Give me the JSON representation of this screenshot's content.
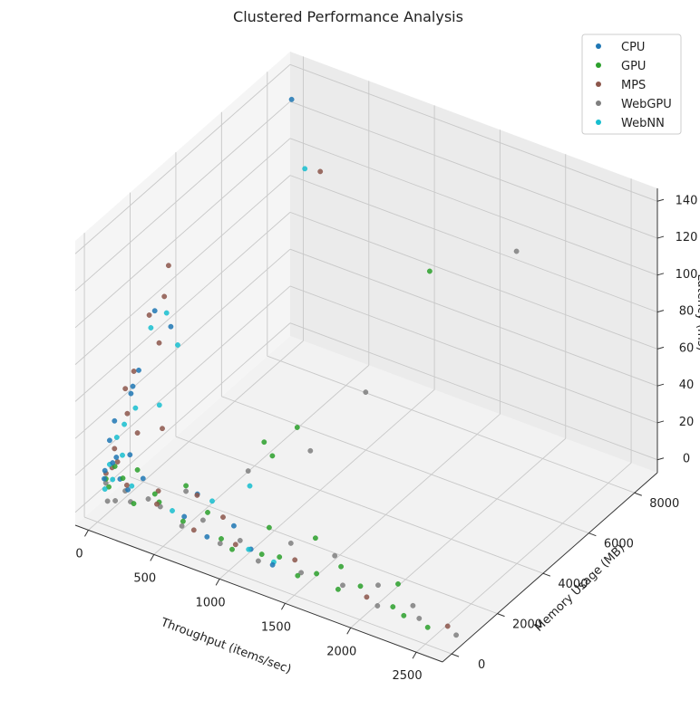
{
  "chart_data": {
    "type": "scatter",
    "projection": "3d",
    "title": "Clustered Performance Analysis",
    "xlabel": "Throughput (items/sec)",
    "ylabel": "Memory Usage (MB)",
    "zlabel": "Latency (ms)",
    "xlim": [
      -100,
      2700
    ],
    "ylim": [
      -400,
      9000
    ],
    "zlim": [
      -7,
      147
    ],
    "xticks": [
      0,
      500,
      1000,
      1500,
      2000,
      2500
    ],
    "yticks": [
      0,
      2000,
      4000,
      6000,
      8000
    ],
    "zticks": [
      0,
      20,
      40,
      60,
      80,
      100,
      120,
      140
    ],
    "grid": true,
    "legend_position": "top-right",
    "series": [
      {
        "name": "CPU",
        "color": "#1f77b4",
        "points": [
          [
            120,
            7800,
            140
          ],
          [
            350,
            1200,
            95
          ],
          [
            280,
            900,
            105
          ],
          [
            150,
            600,
            60
          ],
          [
            60,
            400,
            45
          ],
          [
            40,
            300,
            35
          ],
          [
            80,
            200,
            25
          ],
          [
            30,
            150,
            20
          ],
          [
            100,
            250,
            28
          ],
          [
            20,
            180,
            15
          ],
          [
            180,
            300,
            12
          ],
          [
            260,
            500,
            18
          ],
          [
            600,
            350,
            8
          ],
          [
            800,
            200,
            4
          ],
          [
            1100,
            400,
            3
          ],
          [
            1300,
            200,
            2
          ],
          [
            900,
            800,
            6
          ],
          [
            500,
            1500,
            5
          ],
          [
            60,
            1200,
            55
          ],
          [
            140,
            1000,
            68
          ],
          [
            50,
            700,
            10
          ],
          [
            90,
            900,
            22
          ]
        ]
      },
      {
        "name": "GPU",
        "color": "#2ca02c",
        "points": [
          [
            1400,
            6500,
            95
          ],
          [
            1000,
            3000,
            38
          ],
          [
            950,
            2200,
            30
          ],
          [
            800,
            2700,
            28
          ],
          [
            500,
            1000,
            15
          ],
          [
            350,
            500,
            12
          ],
          [
            600,
            300,
            6
          ],
          [
            1200,
            300,
            4
          ],
          [
            1600,
            400,
            3
          ],
          [
            1900,
            600,
            2
          ],
          [
            2200,
            300,
            2
          ],
          [
            2300,
            200,
            1
          ],
          [
            2500,
            100,
            1
          ],
          [
            1800,
            200,
            2
          ],
          [
            1500,
            150,
            2
          ],
          [
            1300,
            500,
            3
          ],
          [
            1700,
            900,
            4
          ],
          [
            700,
            800,
            8
          ],
          [
            400,
            400,
            10
          ],
          [
            150,
            250,
            18
          ],
          [
            80,
            300,
            22
          ],
          [
            30,
            200,
            15
          ],
          [
            60,
            150,
            12
          ],
          [
            200,
            600,
            20
          ],
          [
            1100,
            1200,
            6
          ],
          [
            1400,
            1500,
            5
          ],
          [
            2100,
            1100,
            3
          ],
          [
            250,
            150,
            8
          ],
          [
            900,
            250,
            5
          ],
          [
            1000,
            150,
            3
          ]
        ]
      },
      {
        "name": "MPS",
        "color": "#8c564b",
        "points": [
          [
            600,
            6300,
            130
          ],
          [
            280,
            1500,
            123
          ],
          [
            300,
            1200,
            110
          ],
          [
            220,
            1000,
            100
          ],
          [
            330,
            800,
            90
          ],
          [
            120,
            900,
            68
          ],
          [
            90,
            700,
            60
          ],
          [
            140,
            500,
            50
          ],
          [
            200,
            600,
            40
          ],
          [
            60,
            400,
            30
          ],
          [
            100,
            300,
            25
          ],
          [
            30,
            200,
            18
          ],
          [
            180,
            250,
            15
          ],
          [
            400,
            300,
            10
          ],
          [
            700,
            200,
            5
          ],
          [
            1000,
            300,
            4
          ],
          [
            1400,
            600,
            3
          ],
          [
            2000,
            300,
            2
          ],
          [
            2600,
            400,
            1
          ],
          [
            800,
            900,
            7
          ],
          [
            550,
            1200,
            9
          ],
          [
            350,
            650,
            12
          ],
          [
            50,
            350,
            20
          ],
          [
            250,
            1400,
            35
          ]
        ]
      },
      {
        "name": "WebGPU",
        "color": "#7f7f7f",
        "points": [
          [
            1800,
            8000,
            100
          ],
          [
            1400,
            3700,
            60
          ],
          [
            1100,
            3000,
            28
          ],
          [
            800,
            2000,
            20
          ],
          [
            500,
            1000,
            12
          ],
          [
            300,
            500,
            8
          ],
          [
            200,
            300,
            6
          ],
          [
            100,
            200,
            5
          ],
          [
            50,
            150,
            4
          ],
          [
            600,
            250,
            4
          ],
          [
            900,
            200,
            3
          ],
          [
            1200,
            150,
            2
          ],
          [
            1500,
            300,
            2
          ],
          [
            1800,
            400,
            2
          ],
          [
            2100,
            200,
            1
          ],
          [
            2400,
            300,
            1
          ],
          [
            2700,
            200,
            1
          ],
          [
            2000,
            800,
            3
          ],
          [
            1600,
            1200,
            4
          ],
          [
            1300,
            1000,
            5
          ],
          [
            700,
            600,
            6
          ],
          [
            400,
            450,
            7
          ],
          [
            150,
            350,
            10
          ],
          [
            20,
            250,
            12
          ],
          [
            2300,
            600,
            2
          ],
          [
            1000,
            500,
            4
          ]
        ]
      },
      {
        "name": "WebNN",
        "color": "#17becf",
        "points": [
          [
            500,
            6200,
            130
          ],
          [
            300,
            1300,
            100
          ],
          [
            420,
            1100,
            88
          ],
          [
            250,
            900,
            95
          ],
          [
            350,
            700,
            58
          ],
          [
            150,
            800,
            50
          ],
          [
            100,
            600,
            42
          ],
          [
            60,
            500,
            35
          ],
          [
            120,
            400,
            28
          ],
          [
            40,
            300,
            22
          ],
          [
            80,
            200,
            16
          ],
          [
            900,
            1500,
            20
          ],
          [
            700,
            1000,
            12
          ],
          [
            500,
            400,
            8
          ],
          [
            1100,
            300,
            4
          ],
          [
            1300,
            250,
            3
          ],
          [
            200,
            350,
            14
          ],
          [
            30,
            150,
            10
          ]
        ]
      }
    ]
  }
}
